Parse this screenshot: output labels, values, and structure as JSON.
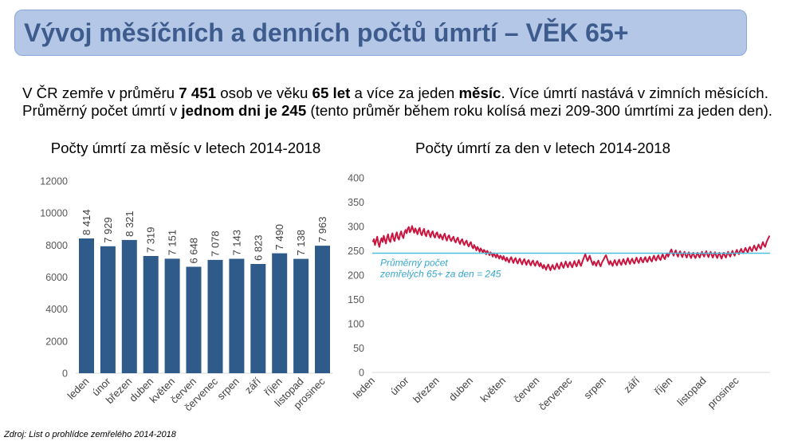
{
  "title": "Vývoj měsíčních a denních počtů úmrtí – VĚK 65+",
  "intro": {
    "line1": [
      "V ČR zemře v průměru ",
      "7 451",
      " osob ve věku ",
      "65 let",
      " a více za jeden ",
      "měsíc",
      ". Více úmrtí nastává v zimních měsících."
    ],
    "line2": [
      "Průměrný počet úmrtí v ",
      "jednom dni je 245",
      " (tento průměr během roku kolísá mezi 209-300 úmrtími za jeden den)."
    ]
  },
  "source": "Zdroj: List o prohlídce zemřelého 2014-2018",
  "chart_data": [
    {
      "type": "bar",
      "title": "Počty úmrtí za měsíc v letech 2014-2018",
      "categories": [
        "leden",
        "únor",
        "březen",
        "duben",
        "květen",
        "červen",
        "červenec",
        "srpen",
        "září",
        "říjen",
        "listopad",
        "prosinec"
      ],
      "values": [
        8414,
        7929,
        8321,
        7319,
        7151,
        6648,
        7078,
        7143,
        6823,
        7490,
        7138,
        7963
      ],
      "data_labels": [
        "8 414",
        "7 929",
        "8 321",
        "7 319",
        "7 151",
        "6 648",
        "7 078",
        "7 143",
        "6 823",
        "7 490",
        "7 138",
        "7 963"
      ],
      "ylim": [
        0,
        12000
      ],
      "y_ticks": [
        0,
        2000,
        4000,
        6000,
        8000,
        10000,
        12000
      ],
      "grid": false,
      "legend": "none",
      "bar_color": "#2f5b8a"
    },
    {
      "type": "line",
      "title": "Počty úmrtí za den v letech 2014-2018",
      "x_tick_labels": [
        "leden",
        "únor",
        "březen",
        "duben",
        "květen",
        "červen",
        "červenec",
        "srpen",
        "září",
        "říjen",
        "listopad",
        "prosinec"
      ],
      "values": [
        268,
        274,
        262,
        271,
        279,
        266,
        258,
        270,
        276,
        268,
        281,
        273,
        265,
        277,
        284,
        272,
        268,
        279,
        286,
        274,
        270,
        282,
        288,
        277,
        273,
        284,
        290,
        281,
        276,
        287,
        293,
        286,
        295,
        299,
        288,
        292,
        301,
        294,
        287,
        296,
        290,
        284,
        293,
        297,
        286,
        282,
        291,
        295,
        284,
        280,
        289,
        292,
        283,
        278,
        287,
        290,
        281,
        277,
        285,
        288,
        280,
        276,
        284,
        279,
        273,
        281,
        285,
        276,
        271,
        279,
        282,
        274,
        270,
        276,
        279,
        271,
        267,
        274,
        277,
        269,
        264,
        271,
        274,
        266,
        262,
        268,
        271,
        263,
        259,
        265,
        268,
        259,
        255,
        262,
        257,
        251,
        258,
        254,
        248,
        255,
        251,
        246,
        252,
        249,
        243,
        250,
        246,
        241,
        247,
        244,
        238,
        245,
        241,
        236,
        243,
        239,
        234,
        240,
        237,
        232,
        239,
        233,
        229,
        236,
        231,
        226,
        233,
        237,
        230,
        225,
        232,
        235,
        228,
        224,
        231,
        234,
        227,
        222,
        229,
        233,
        226,
        221,
        228,
        231,
        224,
        220,
        227,
        230,
        223,
        219,
        226,
        229,
        222,
        218,
        225,
        219,
        214,
        221,
        216,
        211,
        218,
        222,
        215,
        210,
        217,
        221,
        214,
        212,
        219,
        224,
        217,
        213,
        220,
        226,
        219,
        215,
        222,
        228,
        221,
        216,
        223,
        227,
        220,
        216,
        223,
        229,
        222,
        218,
        225,
        231,
        224,
        219,
        226,
        232,
        238,
        243,
        236,
        229,
        234,
        240,
        233,
        226,
        221,
        228,
        224,
        219,
        226,
        230,
        223,
        218,
        225,
        229,
        233,
        238,
        241,
        234,
        227,
        222,
        229,
        224,
        219,
        226,
        231,
        224,
        220,
        227,
        232,
        225,
        221,
        228,
        233,
        226,
        222,
        229,
        235,
        228,
        223,
        230,
        234,
        227,
        224,
        231,
        236,
        229,
        225,
        232,
        236,
        229,
        226,
        233,
        237,
        230,
        227,
        234,
        238,
        231,
        228,
        235,
        240,
        233,
        230,
        237,
        241,
        234,
        231,
        238,
        243,
        236,
        233,
        240,
        245,
        238,
        243,
        249,
        253,
        245,
        240,
        247,
        251,
        243,
        238,
        245,
        249,
        242,
        237,
        244,
        248,
        241,
        236,
        243,
        247,
        240,
        235,
        242,
        246,
        239,
        235,
        241,
        246,
        240,
        236,
        243,
        248,
        242,
        238,
        245,
        249,
        242,
        237,
        244,
        248,
        241,
        236,
        243,
        247,
        240,
        235,
        242,
        246,
        239,
        234,
        241,
        246,
        240,
        236,
        243,
        248,
        242,
        238,
        245,
        250,
        244,
        240,
        247,
        252,
        246,
        243,
        250,
        254,
        248,
        245,
        252,
        256,
        250,
        247,
        254,
        258,
        252,
        249,
        256,
        261,
        255,
        251,
        258,
        263,
        257,
        254,
        262,
        268,
        261,
        258,
        266,
        272,
        276,
        281
      ],
      "ylim": [
        0,
        400
      ],
      "y_ticks": [
        0,
        50,
        100,
        150,
        200,
        250,
        300,
        350,
        400
      ],
      "grid": false,
      "legend": "none",
      "line_color": "#c8143f",
      "reference_line": {
        "value": 245,
        "label": [
          "Průměrný počet",
          "zemřelých 65+ za den = 245"
        ],
        "color": "#4bbfd8"
      }
    }
  ]
}
